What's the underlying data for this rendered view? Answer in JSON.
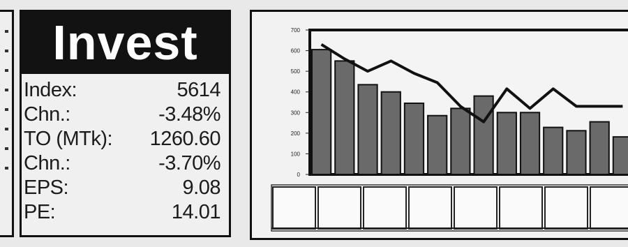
{
  "invest": {
    "title": "Invest",
    "stats": [
      {
        "label": "Index:",
        "value": "5614"
      },
      {
        "label": "Chn.:",
        "value": "-3.48%"
      },
      {
        "label": "TO (MTk):",
        "value": "1260.60"
      },
      {
        "label": "Chn.:",
        "value": "-3.70%"
      },
      {
        "label": "EPS:",
        "value": "9.08"
      },
      {
        "label": "PE:",
        "value": "14.01"
      }
    ]
  },
  "chart_data": {
    "type": "bar",
    "ylim": [
      0,
      700
    ],
    "yticks": [
      0,
      100,
      200,
      300,
      400,
      500,
      600,
      700
    ],
    "series": [
      {
        "kind": "bar",
        "values": [
          605,
          550,
          435,
          400,
          345,
          285,
          320,
          380,
          300,
          300,
          228,
          212,
          255,
          182
        ]
      },
      {
        "kind": "line",
        "values": [
          630,
          560,
          500,
          550,
          490,
          445,
          330,
          255,
          415,
          320,
          415,
          330,
          330,
          330
        ]
      }
    ],
    "sub_panel_count": 8
  },
  "colors": {
    "background": "#e9e9e9",
    "title_bg": "#121212",
    "bar": "#6a6a6a",
    "line": "#111111"
  }
}
